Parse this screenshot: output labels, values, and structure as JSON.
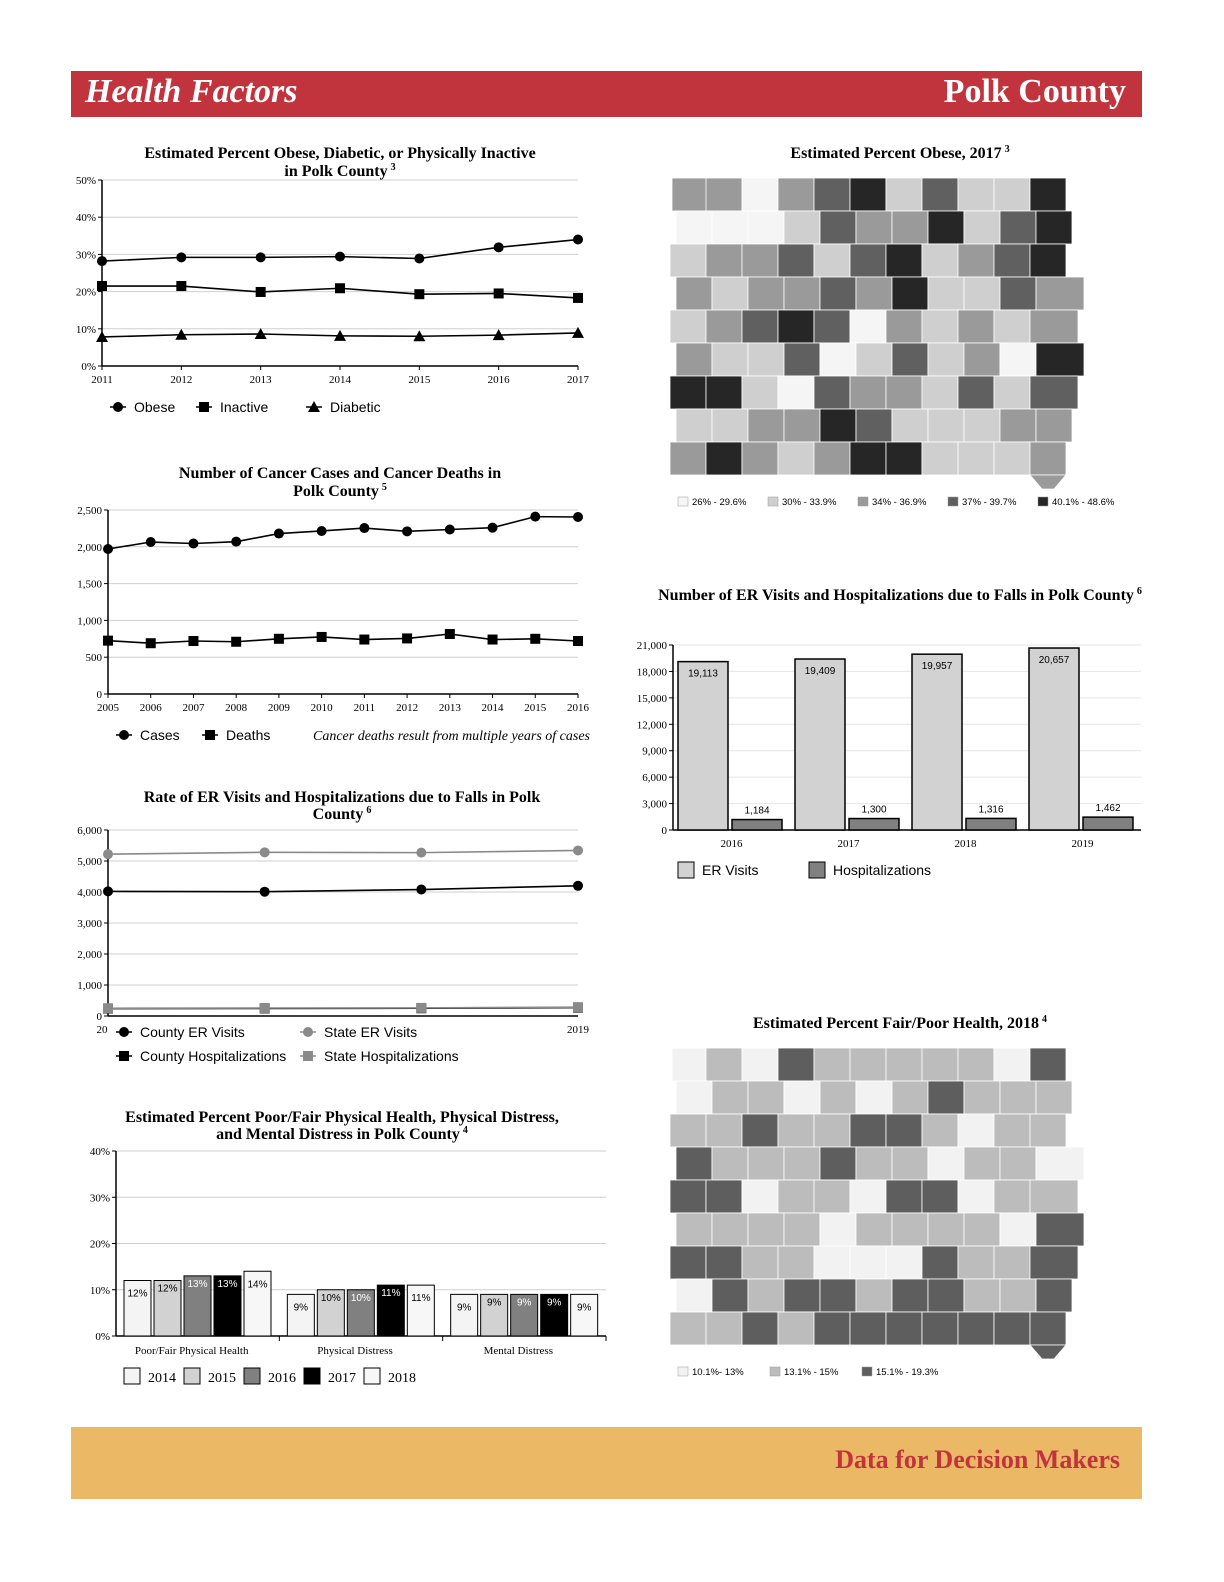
{
  "header": {
    "section": "Health Factors",
    "county": "Polk County"
  },
  "footer": {
    "text": "Data for Decision Makers"
  },
  "colors": {
    "header": "#c1343e",
    "footer": "#ebb865"
  },
  "chart_data": [
    {
      "id": "obese",
      "type": "line",
      "title": "Estimated Percent Obese, Diabetic, or Physically Inactive",
      "title2": "in Polk County",
      "sup": "3",
      "x": [
        2011,
        2012,
        2013,
        2014,
        2015,
        2016,
        2017
      ],
      "y_ticks": [
        "0%",
        "10%",
        "20%",
        "30%",
        "40%",
        "50%"
      ],
      "ylim": [
        0,
        50
      ],
      "series": [
        {
          "name": "Obese",
          "marker": "circle",
          "values": [
            28.2,
            29.2,
            29.2,
            29.4,
            28.9,
            31.9,
            34.0
          ]
        },
        {
          "name": "Inactive",
          "marker": "square",
          "values": [
            21.5,
            21.5,
            19.9,
            20.9,
            19.3,
            19.5,
            18.3
          ]
        },
        {
          "name": "Diabetic",
          "marker": "triangle",
          "values": [
            7.8,
            8.4,
            8.6,
            8.1,
            8.0,
            8.3,
            8.9
          ]
        }
      ]
    },
    {
      "id": "cancer",
      "type": "line",
      "title": "Number of Cancer Cases and Cancer Deaths in",
      "title2": "Polk County",
      "sup": "5",
      "note": "Cancer deaths result from multiple years of cases",
      "x": [
        2005,
        2006,
        2007,
        2008,
        2009,
        2010,
        2011,
        2012,
        2013,
        2014,
        2015,
        2016
      ],
      "y_ticks": [
        "0",
        "500",
        "1,000",
        "1,500",
        "2,000",
        "2,500"
      ],
      "ylim": [
        0,
        2500
      ],
      "series": [
        {
          "name": "Cases",
          "marker": "circle",
          "values": [
            1970,
            2065,
            2045,
            2070,
            2180,
            2215,
            2255,
            2210,
            2235,
            2260,
            2410,
            2405
          ]
        },
        {
          "name": "Deaths",
          "marker": "square",
          "values": [
            725,
            690,
            720,
            710,
            750,
            775,
            740,
            755,
            815,
            740,
            750,
            720
          ]
        }
      ]
    },
    {
      "id": "fallsrate",
      "type": "line",
      "title": "Rate of ER Visits and Hospitalizations due to Falls in Polk",
      "title2": "County",
      "sup": "6",
      "x_tick_left": "20",
      "x_tick_right": "2019",
      "y_ticks": [
        "0",
        "1,000",
        "2,000",
        "3,000",
        "4,000",
        "5,000",
        "6,000"
      ],
      "ylim": [
        0,
        6000
      ],
      "series": [
        {
          "name": "County ER Visits",
          "marker": "circle",
          "color": "#000000",
          "values": [
            4020,
            4010,
            4080,
            4200
          ]
        },
        {
          "name": "State ER Visits",
          "marker": "circle",
          "color": "#8a8a8a",
          "values": [
            5220,
            5280,
            5270,
            5340
          ]
        },
        {
          "name": "County Hospitalizations",
          "marker": "square",
          "color": "#000000",
          "values": [
            240,
            245,
            250,
            270
          ]
        },
        {
          "name": "State Hospitalizations",
          "marker": "square",
          "color": "#8a8a8a",
          "values": [
            250,
            258,
            262,
            285
          ]
        }
      ]
    },
    {
      "id": "poorhealth",
      "type": "bar",
      "title": "Estimated Percent Poor/Fair Physical Health, Physical Distress,",
      "title2": "and Mental Distress in Polk County",
      "sup": "4",
      "categories": [
        "Poor/Fair Physical Health",
        "Physical Distress",
        "Mental Distress"
      ],
      "y_ticks": [
        "0%",
        "10%",
        "20%",
        "30%",
        "40%"
      ],
      "ylim": [
        0,
        40
      ],
      "series": [
        {
          "name": "2014",
          "color": "#f4f4f4",
          "values": [
            12,
            9,
            9
          ],
          "labels": [
            "12%",
            "9%",
            "9%"
          ]
        },
        {
          "name": "2015",
          "color": "#d2d2d2",
          "values": [
            12,
            10,
            9
          ],
          "labels": [
            "12%",
            "10%",
            "9%"
          ]
        },
        {
          "name": "2016",
          "color": "#808080",
          "values": [
            13,
            10,
            9
          ],
          "labels": [
            "13%",
            "10%",
            "9%"
          ]
        },
        {
          "name": "2017",
          "color": "#000000",
          "values": [
            13,
            11,
            9
          ],
          "labels": [
            "13%",
            "11%",
            "9%"
          ]
        },
        {
          "name": "2018",
          "color": "#f7f7f7",
          "values": [
            14,
            11,
            9
          ],
          "labels": [
            "14%",
            "11%",
            "9%"
          ]
        }
      ]
    },
    {
      "id": "falls",
      "type": "bar",
      "title": "Number of ER Visits and Hospitalizations due to Falls in Polk County",
      "sup": "6",
      "categories": [
        "2016",
        "2017",
        "2018",
        "2019"
      ],
      "y_ticks": [
        "0",
        "3,000",
        "6,000",
        "9,000",
        "12,000",
        "15,000",
        "18,000",
        "21,000"
      ],
      "ylim": [
        0,
        21000
      ],
      "series": [
        {
          "name": "ER Visits",
          "color": "#d2d2d2",
          "values": [
            19113,
            19409,
            19957,
            20657
          ],
          "labels": [
            "19,113",
            "19,409",
            "19,957",
            "20,657"
          ]
        },
        {
          "name": "Hospitalizations",
          "color": "#808080",
          "values": [
            1184,
            1300,
            1316,
            1462
          ],
          "labels": [
            "1,184",
            "1,300",
            "1,316",
            "1,462"
          ]
        }
      ]
    }
  ],
  "maps": [
    {
      "id": "obesemap",
      "title": "Estimated Percent Obese, 2017",
      "sup": "3",
      "legend": [
        {
          "label": "26% - 29.6%",
          "color": "#f5f5f5"
        },
        {
          "label": "30% - 33.9%",
          "color": "#cfcfcf"
        },
        {
          "label": "34% - 36.9%",
          "color": "#9a9a9a"
        },
        {
          "label": "37% - 39.7%",
          "color": "#606060"
        },
        {
          "label": "40.1% - 48.6%",
          "color": "#262626"
        }
      ],
      "rows": [
        [
          3,
          3,
          1,
          3,
          4,
          5,
          2,
          4,
          2,
          2,
          5
        ],
        [
          1,
          1,
          1,
          2,
          4,
          3,
          3,
          5,
          2,
          4,
          5
        ],
        [
          2,
          3,
          3,
          4,
          2,
          4,
          5,
          2,
          3,
          4,
          5
        ],
        [
          3,
          2,
          3,
          3,
          4,
          3,
          5,
          2,
          2,
          4,
          3
        ],
        [
          2,
          3,
          4,
          5,
          4,
          1,
          3,
          2,
          3,
          2,
          3
        ],
        [
          3,
          2,
          2,
          4,
          1,
          2,
          4,
          2,
          3,
          1,
          5
        ],
        [
          5,
          5,
          2,
          1,
          4,
          3,
          3,
          2,
          4,
          2,
          4
        ],
        [
          2,
          2,
          3,
          3,
          5,
          4,
          2,
          2,
          2,
          3,
          3
        ],
        [
          3,
          5,
          3,
          2,
          3,
          5,
          5,
          2,
          2,
          2,
          3
        ]
      ]
    },
    {
      "id": "poormap",
      "title": "Estimated Percent Fair/Poor Health, 2018",
      "sup": "4",
      "legend": [
        {
          "label": "10.1%- 13%",
          "color": "#f2f2f2"
        },
        {
          "label": "13.1% - 15%",
          "color": "#bcbcbc"
        },
        {
          "label": "15.1% - 19.3%",
          "color": "#5e5e5e"
        }
      ],
      "rows": [
        [
          1,
          2,
          1,
          3,
          2,
          2,
          2,
          2,
          2,
          1,
          3
        ],
        [
          1,
          2,
          2,
          1,
          2,
          1,
          2,
          3,
          2,
          2,
          2
        ],
        [
          2,
          2,
          3,
          2,
          2,
          3,
          3,
          2,
          1,
          2,
          2
        ],
        [
          3,
          2,
          2,
          2,
          3,
          2,
          2,
          1,
          2,
          2,
          1
        ],
        [
          3,
          3,
          1,
          2,
          2,
          1,
          3,
          3,
          1,
          2,
          2
        ],
        [
          2,
          2,
          2,
          2,
          1,
          2,
          2,
          2,
          2,
          1,
          3
        ],
        [
          3,
          3,
          2,
          2,
          1,
          1,
          1,
          3,
          2,
          2,
          3
        ],
        [
          1,
          3,
          2,
          3,
          3,
          2,
          3,
          3,
          2,
          2,
          3
        ],
        [
          2,
          2,
          3,
          2,
          3,
          3,
          3,
          3,
          3,
          3,
          3
        ]
      ]
    }
  ]
}
